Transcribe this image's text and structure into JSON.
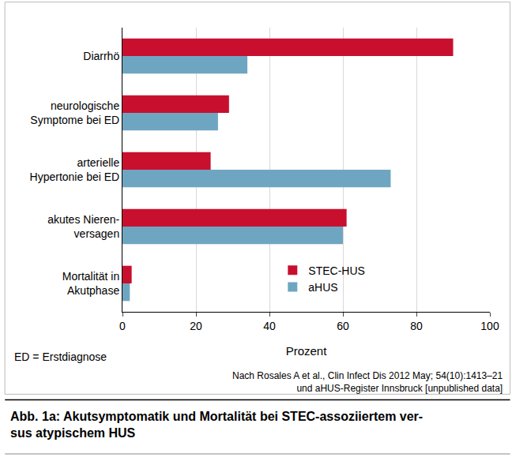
{
  "chart_data": {
    "type": "bar",
    "orientation": "horizontal",
    "title": "Abb. 1a: Akutsymptomatik und Mortalität bei STEC-assoziiertem ver-\nsus atypischem HUS",
    "x_label": "Prozent",
    "categories": [
      "Diarrhö",
      "neurologische\nSymptome bei ED",
      "arterielle\nHypertonie bei ED",
      "akutes Nieren-\nversagen",
      "Mortalität in\nAkutphase"
    ],
    "series": [
      {
        "name": "STEC-HUS",
        "color": "#c8102e",
        "values": [
          90,
          29,
          24,
          61,
          2.5
        ]
      },
      {
        "name": "aHUS",
        "color": "#6ea6c2",
        "values": [
          34,
          26,
          73,
          60,
          2
        ]
      }
    ],
    "xlim": [
      0,
      100
    ],
    "xticks": [
      0,
      20,
      40,
      60,
      80,
      100
    ],
    "grid": true,
    "legend": "center",
    "annotations": [
      "ED = Erstdiagnose",
      "Nach Rosales A et al., Clin Infect Dis 2012 May; 54(10):1413–21\nund aHUS-Register Innsbruck [unpublished data]"
    ]
  }
}
